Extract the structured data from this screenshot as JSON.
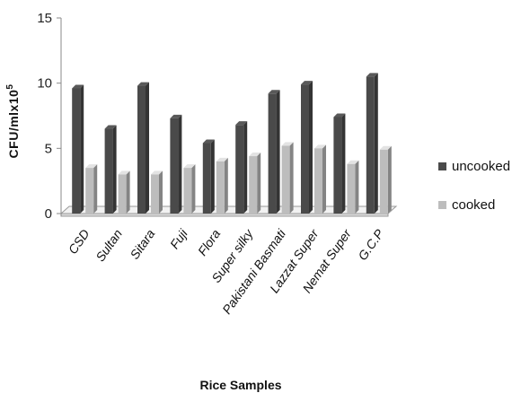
{
  "chart_data": {
    "type": "bar",
    "title": "",
    "xlabel": "Rice Samples",
    "ylabel_main": "CFU/mlx10",
    "ylabel_sup": "5",
    "ylim": [
      0,
      15
    ],
    "yticks": [
      "0",
      "5",
      "10",
      "15"
    ],
    "categories": [
      "CSD",
      "Sultan",
      "Sitara",
      "Fuji",
      "Flora",
      "Super silky",
      "Pakistani Basmati",
      "Lazzat Super",
      "Nemat Super",
      "G.C.P"
    ],
    "series": [
      {
        "name": "uncooked",
        "color": "#4a4a4a",
        "values": [
          9.6,
          6.5,
          9.8,
          7.3,
          5.4,
          6.8,
          9.2,
          9.9,
          7.4,
          10.5
        ]
      },
      {
        "name": "cooked",
        "color": "#bdbdbd",
        "values": [
          3.5,
          3.0,
          3.0,
          3.5,
          4.0,
          4.4,
          5.2,
          5.0,
          3.8,
          4.9
        ]
      }
    ],
    "grid": false,
    "legend_position": "right"
  }
}
